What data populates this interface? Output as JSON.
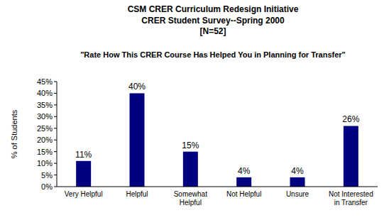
{
  "chart_data": {
    "type": "bar",
    "title": [
      "CSM CRER Curriculum Redesign Initiative",
      "CRER Student Survey--Spring 2000",
      "[N=52]"
    ],
    "subtitle": "\"Rate How This CRER Course Has Helped You in Planning for Transfer\"",
    "y_label": "% of Students",
    "categories": [
      "Very Helpful",
      "Helpful",
      "Somewhat Helpful",
      "Not Helpful",
      "Unsure",
      "Not Interested in Transfer"
    ],
    "values": [
      11,
      40,
      15,
      4,
      4,
      26
    ],
    "value_labels": [
      "11%",
      "40%",
      "15%",
      "4%",
      "4%",
      "26%"
    ],
    "data_labels": true,
    "color": "#000080",
    "grid": false,
    "ylim": [
      0,
      45
    ],
    "yticks": [
      {
        "value": 0,
        "label": "0%"
      },
      {
        "value": 5,
        "label": "5%"
      },
      {
        "value": 10,
        "label": "10%"
      },
      {
        "value": 15,
        "label": "15%"
      },
      {
        "value": 20,
        "label": "20%"
      },
      {
        "value": 25,
        "label": "25%"
      },
      {
        "value": 30,
        "label": "30%"
      },
      {
        "value": 35,
        "label": "35%"
      },
      {
        "value": 40,
        "label": "40%"
      },
      {
        "value": 45,
        "label": "45%"
      }
    ]
  }
}
